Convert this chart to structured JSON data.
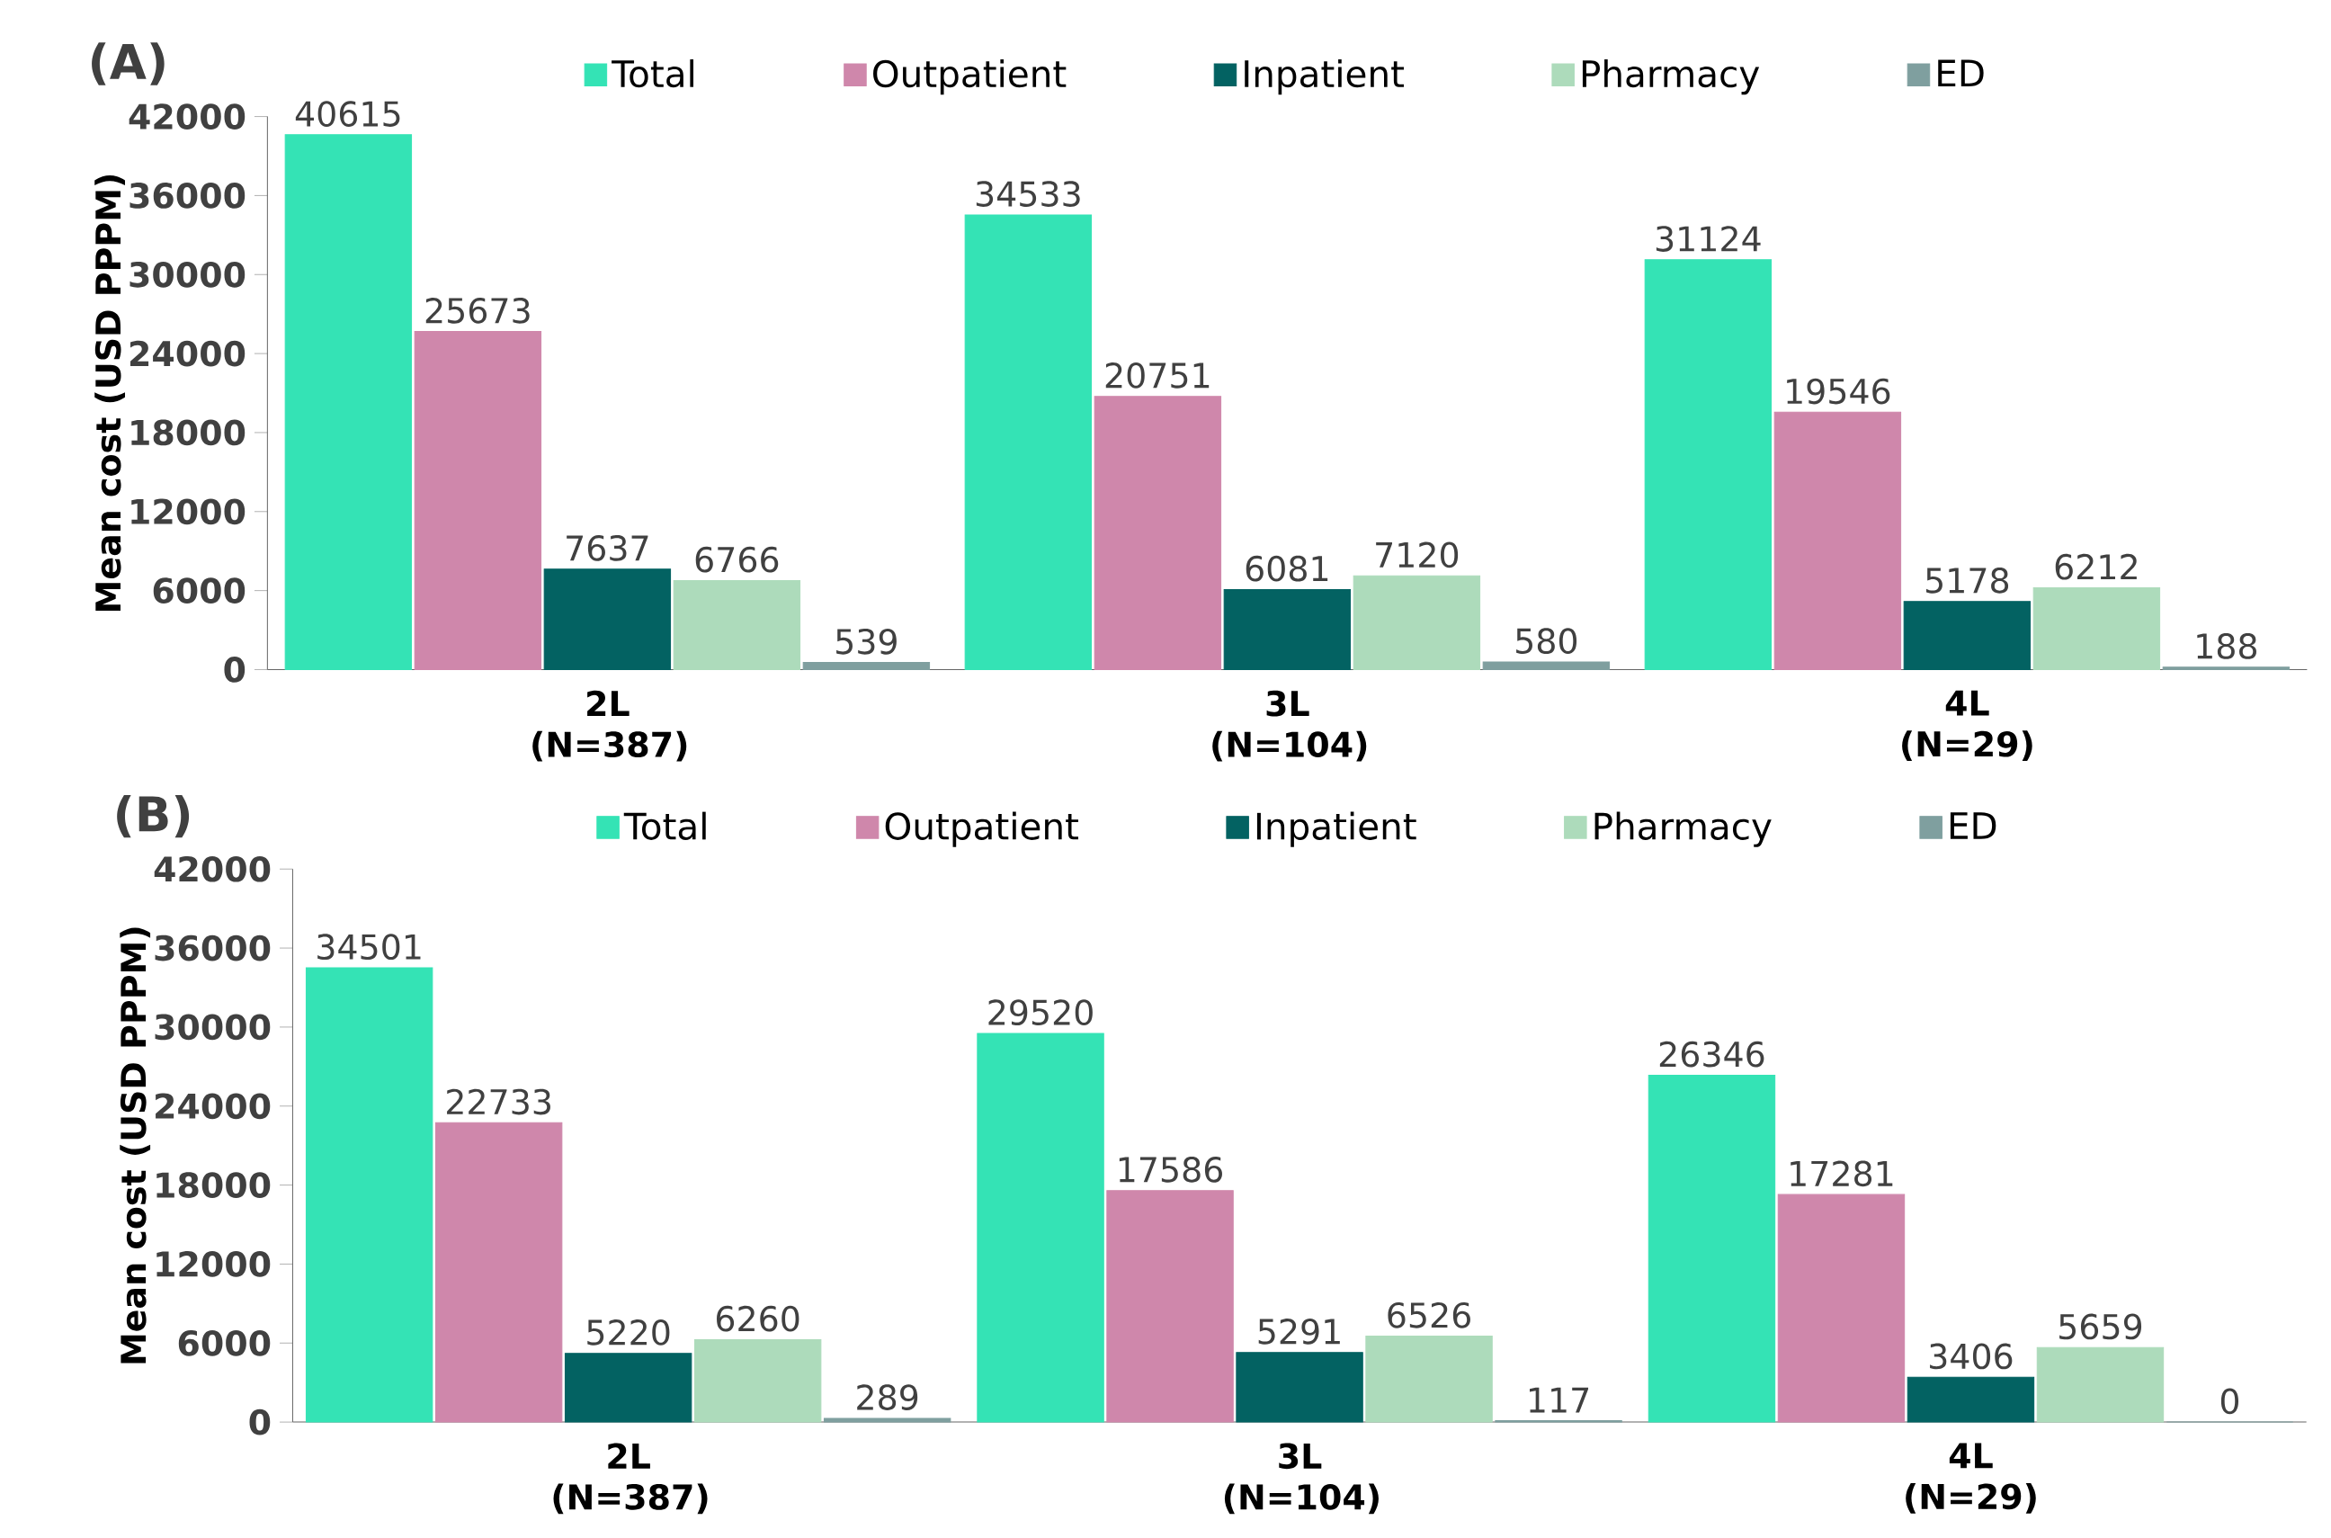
{
  "chart_data": [
    {
      "type": "bar",
      "title": "(A)",
      "ylabel": "Mean cost (USD PPPM)",
      "categories": [
        "2L (N=387)",
        "3L (N=104)",
        "4L (N=29)"
      ],
      "series": [
        {
          "name": "Total",
          "color": "#34e3b5",
          "values": [
            40615,
            34533,
            31124
          ]
        },
        {
          "name": "Outpatient",
          "color": "#cf87ab",
          "values": [
            25673,
            20751,
            19546
          ]
        },
        {
          "name": "Inpatient",
          "color": "#036262",
          "values": [
            7637,
            6081,
            5178
          ]
        },
        {
          "name": "Pharmacy",
          "color": "#addbbb",
          "values": [
            6766,
            7120,
            6212
          ]
        },
        {
          "name": "ED",
          "color": "#7f9f9f",
          "values": [
            539,
            580,
            188
          ]
        }
      ],
      "ylim": [
        0,
        42000
      ],
      "yticks": [
        0,
        6000,
        12000,
        18000,
        24000,
        30000,
        36000,
        42000
      ],
      "data_labels": true,
      "legend": "top"
    },
    {
      "type": "bar",
      "title": "(B)",
      "ylabel": "Mean cost (USD PPPM)",
      "categories": [
        "2L (N=387)",
        "3L (N=104)",
        "4L (N=29)"
      ],
      "series": [
        {
          "name": "Total",
          "color": "#34e3b5",
          "values": [
            34501,
            29520,
            26346
          ]
        },
        {
          "name": "Outpatient",
          "color": "#cf87ab",
          "values": [
            22733,
            17586,
            17281
          ]
        },
        {
          "name": "Inpatient",
          "color": "#036262",
          "values": [
            5220,
            5291,
            3406
          ]
        },
        {
          "name": "Pharmacy",
          "color": "#addbbb",
          "values": [
            6260,
            6526,
            5659
          ]
        },
        {
          "name": "ED",
          "color": "#7f9f9f",
          "values": [
            289,
            117,
            0
          ]
        }
      ],
      "ylim": [
        0,
        42000
      ],
      "yticks": [
        0,
        6000,
        12000,
        18000,
        24000,
        30000,
        36000,
        42000
      ],
      "data_labels": true,
      "legend": "top"
    }
  ]
}
